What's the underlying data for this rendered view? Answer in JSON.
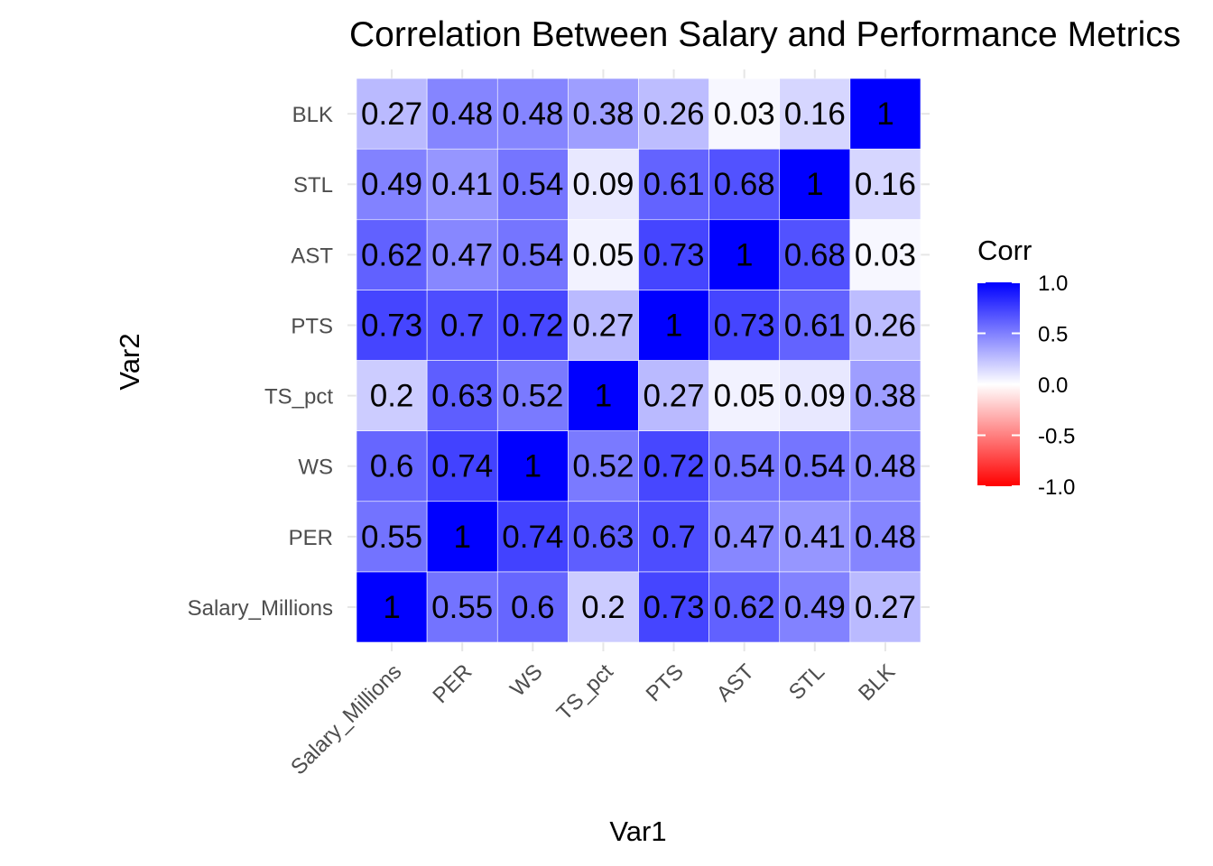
{
  "chart_data": {
    "type": "heatmap",
    "title": "Correlation Between Salary and Performance Metrics",
    "xlabel": "Var1",
    "ylabel": "Var2",
    "variables": [
      "Salary_Millions",
      "PER",
      "WS",
      "TS_pct",
      "PTS",
      "AST",
      "STL",
      "BLK"
    ],
    "matrix": [
      [
        1,
        0.55,
        0.6,
        0.2,
        0.73,
        0.62,
        0.49,
        0.27
      ],
      [
        0.55,
        1,
        0.74,
        0.63,
        0.7,
        0.47,
        0.41,
        0.48
      ],
      [
        0.6,
        0.74,
        1,
        0.52,
        0.72,
        0.54,
        0.54,
        0.48
      ],
      [
        0.2,
        0.63,
        0.52,
        1,
        0.27,
        0.05,
        0.09,
        0.38
      ],
      [
        0.73,
        0.7,
        0.72,
        0.27,
        1,
        0.73,
        0.61,
        0.26
      ],
      [
        0.62,
        0.47,
        0.54,
        0.05,
        0.73,
        1,
        0.68,
        0.03
      ],
      [
        0.49,
        0.41,
        0.54,
        0.09,
        0.61,
        0.68,
        1,
        0.16
      ],
      [
        0.27,
        0.48,
        0.48,
        0.38,
        0.26,
        0.03,
        0.16,
        1
      ]
    ],
    "legend": {
      "title": "Corr",
      "ticks": [
        "1.0",
        "0.5",
        "0.0",
        "-0.5",
        "-1.0"
      ],
      "tick_values": [
        1,
        0.5,
        0,
        -0.5,
        -1
      ],
      "range": [
        -1,
        1
      ],
      "placement": "right"
    },
    "colors": {
      "low": "#ff0000",
      "mid": "#ffffff",
      "high": "#0000ff",
      "tick_mark": "#e6e6e6",
      "cell_border": "#ffffff"
    },
    "grid": false
  }
}
